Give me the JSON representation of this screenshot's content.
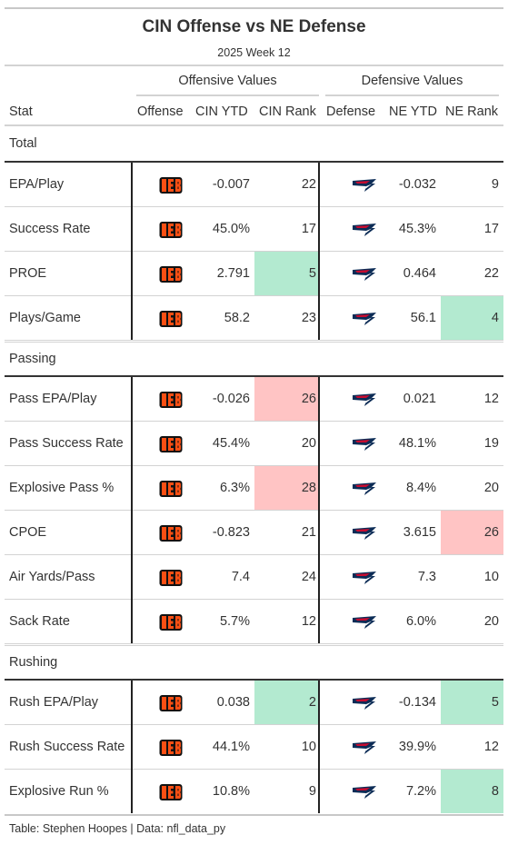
{
  "title": "CIN Offense vs NE Defense",
  "subtitle": "2025 Week 12",
  "spanners": {
    "offense": "Offensive Values",
    "defense": "Defensive Values"
  },
  "columns": {
    "stat": "Stat",
    "offense": "Offense",
    "cin_ytd": "CIN YTD",
    "cin_rank": "CIN Rank",
    "defense": "Defense",
    "ne_ytd": "NE YTD",
    "ne_rank": "NE Rank"
  },
  "colors": {
    "good": "#b3ead0",
    "bad": "#ffc4c4",
    "bengals_orange": "#fb4f14",
    "bengals_black": "#111111",
    "patriots_navy": "#0c2c56",
    "patriots_red": "#c60c30"
  },
  "icons": {
    "offense": "bengals-logo-icon",
    "defense": "patriots-logo-icon"
  },
  "groups": [
    {
      "label": "Total",
      "rows": [
        {
          "stat": "EPA/Play",
          "cin_ytd": "-0.007",
          "cin_rank": "22",
          "ne_ytd": "-0.032",
          "ne_rank": "9",
          "cin_hl": "",
          "ne_hl": ""
        },
        {
          "stat": "Success Rate",
          "cin_ytd": "45.0%",
          "cin_rank": "17",
          "ne_ytd": "45.3%",
          "ne_rank": "17",
          "cin_hl": "",
          "ne_hl": ""
        },
        {
          "stat": "PROE",
          "cin_ytd": "2.791",
          "cin_rank": "5",
          "ne_ytd": "0.464",
          "ne_rank": "22",
          "cin_hl": "good",
          "ne_hl": ""
        },
        {
          "stat": "Plays/Game",
          "cin_ytd": "58.2",
          "cin_rank": "23",
          "ne_ytd": "56.1",
          "ne_rank": "4",
          "cin_hl": "",
          "ne_hl": "good"
        }
      ]
    },
    {
      "label": "Passing",
      "rows": [
        {
          "stat": "Pass EPA/Play",
          "cin_ytd": "-0.026",
          "cin_rank": "26",
          "ne_ytd": "0.021",
          "ne_rank": "12",
          "cin_hl": "bad",
          "ne_hl": ""
        },
        {
          "stat": "Pass Success Rate",
          "cin_ytd": "45.4%",
          "cin_rank": "20",
          "ne_ytd": "48.1%",
          "ne_rank": "19",
          "cin_hl": "",
          "ne_hl": ""
        },
        {
          "stat": "Explosive Pass %",
          "cin_ytd": "6.3%",
          "cin_rank": "28",
          "ne_ytd": "8.4%",
          "ne_rank": "20",
          "cin_hl": "bad",
          "ne_hl": ""
        },
        {
          "stat": "CPOE",
          "cin_ytd": "-0.823",
          "cin_rank": "21",
          "ne_ytd": "3.615",
          "ne_rank": "26",
          "cin_hl": "",
          "ne_hl": "bad"
        },
        {
          "stat": "Air Yards/Pass",
          "cin_ytd": "7.4",
          "cin_rank": "24",
          "ne_ytd": "7.3",
          "ne_rank": "10",
          "cin_hl": "",
          "ne_hl": ""
        },
        {
          "stat": "Sack Rate",
          "cin_ytd": "5.7%",
          "cin_rank": "12",
          "ne_ytd": "6.0%",
          "ne_rank": "20",
          "cin_hl": "",
          "ne_hl": ""
        }
      ]
    },
    {
      "label": "Rushing",
      "rows": [
        {
          "stat": "Rush EPA/Play",
          "cin_ytd": "0.038",
          "cin_rank": "2",
          "ne_ytd": "-0.134",
          "ne_rank": "5",
          "cin_hl": "good",
          "ne_hl": "good"
        },
        {
          "stat": "Rush Success Rate",
          "cin_ytd": "44.1%",
          "cin_rank": "10",
          "ne_ytd": "39.9%",
          "ne_rank": "12",
          "cin_hl": "",
          "ne_hl": ""
        },
        {
          "stat": "Explosive Run %",
          "cin_ytd": "10.8%",
          "cin_rank": "9",
          "ne_ytd": "7.2%",
          "ne_rank": "8",
          "cin_hl": "",
          "ne_hl": "good"
        }
      ]
    }
  ],
  "source": "Table: Stephen Hoopes | Data: nfl_data_py"
}
